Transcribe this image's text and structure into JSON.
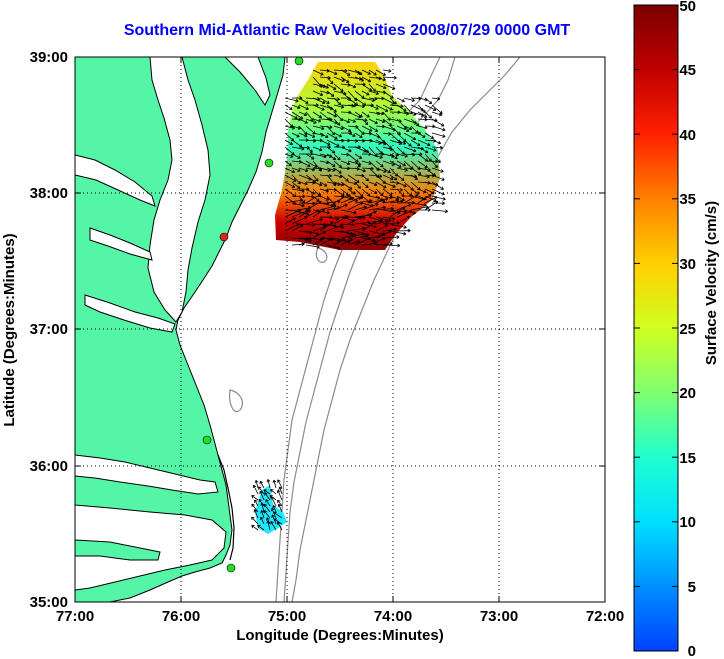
{
  "title": "Southern Mid-Atlantic Raw Velocities 2008/07/29 0000 GMT",
  "x_axis": {
    "label": "Longitude (Degrees:Minutes)",
    "ticks": [
      "77:00",
      "76:00",
      "75:00",
      "74:00",
      "73:00",
      "72:00"
    ]
  },
  "y_axis": {
    "label": "Latitude (Degrees:Minutes)",
    "ticks": [
      "39:00",
      "38:00",
      "37:00",
      "36:00",
      "35:00"
    ]
  },
  "colorbar": {
    "label": "Surface Velocity (cm/s)",
    "ticks": [
      "50",
      "45",
      "40",
      "35",
      "30",
      "25",
      "20",
      "15",
      "10",
      "5",
      "0"
    ],
    "min": 0,
    "max": 50
  },
  "colors": {
    "title": "#0000ff",
    "land": "#55f5a8",
    "water": "#ffffff",
    "coastline": "#000000",
    "bathymetry": "#8c8c8c",
    "station_marker": "#22dd22",
    "station_marker_alert": "#dd2222"
  },
  "grid": true
}
